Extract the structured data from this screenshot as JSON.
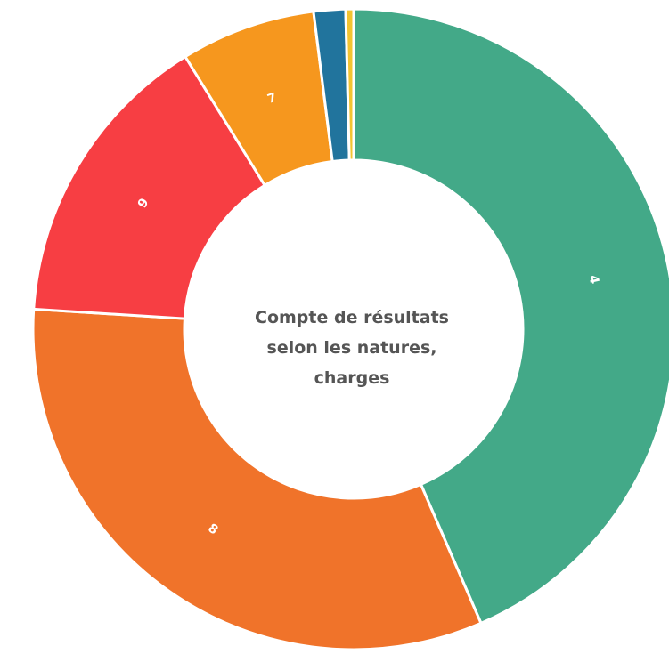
{
  "chart_data": {
    "type": "pie",
    "variant": "donut",
    "title_lines": [
      "Compte de résultats",
      "selon les natures,",
      "charges"
    ],
    "slices": [
      {
        "label": "4",
        "value": 43.5,
        "color": "#43a988",
        "show_label": true
      },
      {
        "label": "8",
        "value": 32.5,
        "color": "#f0732a",
        "show_label": true
      },
      {
        "label": "9",
        "value": 15.2,
        "color": "#f73e43",
        "show_label": true
      },
      {
        "label": "7",
        "value": 6.8,
        "color": "#f6971e",
        "show_label": true
      },
      {
        "label": "",
        "value": 1.6,
        "color": "#21749d",
        "show_label": false
      },
      {
        "label": "",
        "value": 0.4,
        "color": "#f3c431",
        "show_label": false
      }
    ]
  }
}
